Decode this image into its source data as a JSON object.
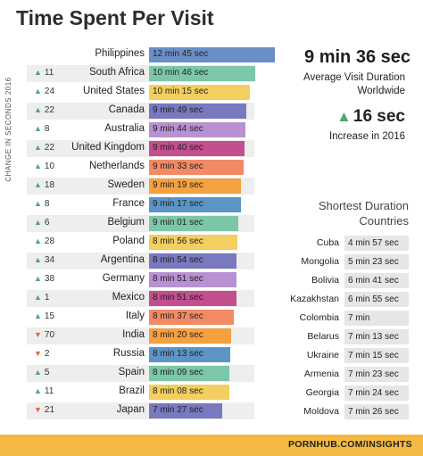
{
  "colors": {
    "up": "#4ea96c",
    "down": "#e8663f",
    "footer": "#f4b942",
    "alt_row": "#eeeeee"
  },
  "chart_data": {
    "type": "bar",
    "orientation": "horizontal",
    "title": "Time Spent Per Visit",
    "change_label": "CHANGE IN SECONDS 2016",
    "xlim": [
      0,
      765
    ],
    "rows": [
      {
        "country": "Philippines",
        "label": "12 min 45 sec",
        "seconds": 765,
        "change": "",
        "dir": "",
        "color": "#6a8fc7"
      },
      {
        "country": "South Africa",
        "label": "10 min 46 sec",
        "seconds": 646,
        "change": "11",
        "dir": "up",
        "color": "#7cc7a8"
      },
      {
        "country": "United States",
        "label": "10 min 15 sec",
        "seconds": 615,
        "change": "24",
        "dir": "up",
        "color": "#f2cf60"
      },
      {
        "country": "Canada",
        "label": "9 min 49 sec",
        "seconds": 589,
        "change": "22",
        "dir": "up",
        "color": "#7879be"
      },
      {
        "country": "Australia",
        "label": "9 min 44 sec",
        "seconds": 584,
        "change": "8",
        "dir": "up",
        "color": "#b791d1"
      },
      {
        "country": "United Kingdom",
        "label": "9 min 40 sec",
        "seconds": 580,
        "change": "22",
        "dir": "up",
        "color": "#c44f8e"
      },
      {
        "country": "Netherlands",
        "label": "9 min 33 sec",
        "seconds": 573,
        "change": "10",
        "dir": "up",
        "color": "#f38a66"
      },
      {
        "country": "Sweden",
        "label": "9 min 19 sec",
        "seconds": 559,
        "change": "18",
        "dir": "up",
        "color": "#f5a13f"
      },
      {
        "country": "France",
        "label": "9 min 17 sec",
        "seconds": 557,
        "change": "8",
        "dir": "up",
        "color": "#5c94c6"
      },
      {
        "country": "Belgium",
        "label": "9 min 01 sec",
        "seconds": 541,
        "change": "6",
        "dir": "up",
        "color": "#7cc7a8"
      },
      {
        "country": "Poland",
        "label": "8 min 56 sec",
        "seconds": 536,
        "change": "28",
        "dir": "up",
        "color": "#f2cf60"
      },
      {
        "country": "Argentina",
        "label": "8 min 54 sec",
        "seconds": 534,
        "change": "34",
        "dir": "up",
        "color": "#7879be"
      },
      {
        "country": "Germany",
        "label": "8 min 51 sec",
        "seconds": 531,
        "change": "38",
        "dir": "up",
        "color": "#b791d1"
      },
      {
        "country": "Mexico",
        "label": "8 min 51 sec",
        "seconds": 531,
        "change": "1",
        "dir": "up",
        "color": "#c44f8e"
      },
      {
        "country": "Italy",
        "label": "8 min 37 sec",
        "seconds": 517,
        "change": "15",
        "dir": "up",
        "color": "#f38a66"
      },
      {
        "country": "India",
        "label": "8 min 20 sec",
        "seconds": 500,
        "change": "70",
        "dir": "down",
        "color": "#f5a13f"
      },
      {
        "country": "Russia",
        "label": "8 min 13 sec",
        "seconds": 493,
        "change": "2",
        "dir": "down",
        "color": "#5c94c6"
      },
      {
        "country": "Spain",
        "label": "8 min 09 sec",
        "seconds": 489,
        "change": "5",
        "dir": "up",
        "color": "#7cc7a8"
      },
      {
        "country": "Brazil",
        "label": "8 min 08 sec",
        "seconds": 488,
        "change": "11",
        "dir": "up",
        "color": "#f2cf60"
      },
      {
        "country": "Japan",
        "label": "7 min 27 sec",
        "seconds": 447,
        "change": "21",
        "dir": "down",
        "color": "#7879be"
      }
    ]
  },
  "summary": {
    "avg_value": "9 min 36 sec",
    "avg_label_1": "Average Visit Duration",
    "avg_label_2": "Worldwide",
    "increase_value": "16 sec",
    "increase_label": "Increase in 2016"
  },
  "shortest": {
    "title_1": "Shortest Duration",
    "title_2": "Countries",
    "rows": [
      {
        "country": "Cuba",
        "value": "4 min 57 sec"
      },
      {
        "country": "Mongolia",
        "value": "5 min 23 sec"
      },
      {
        "country": "Bolivia",
        "value": "6 min 41 sec"
      },
      {
        "country": "Kazakhstan",
        "value": "6 min 55 sec"
      },
      {
        "country": "Colombia",
        "value": "7 min"
      },
      {
        "country": "Belarus",
        "value": "7 min 13 sec"
      },
      {
        "country": "Ukraine",
        "value": "7 min 15 sec"
      },
      {
        "country": "Armenia",
        "value": "7 min 23 sec"
      },
      {
        "country": "Georgia",
        "value": "7 min 24 sec"
      },
      {
        "country": "Moldova",
        "value": "7 min 26 sec"
      }
    ]
  },
  "footer": {
    "source": "PORNHUB.COM/INSIGHTS"
  }
}
